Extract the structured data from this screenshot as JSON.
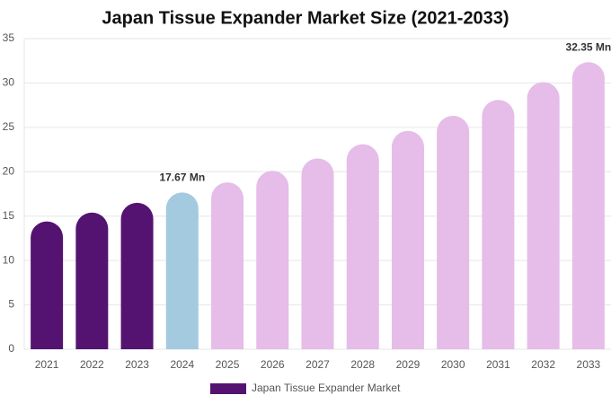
{
  "chart_data": {
    "type": "bar",
    "title": "Japan Tissue Expander Market Size (2021-2033)",
    "categories": [
      "2021",
      "2022",
      "2023",
      "2024",
      "2025",
      "2026",
      "2027",
      "2028",
      "2029",
      "2030",
      "2031",
      "2032",
      "2033"
    ],
    "series": [
      {
        "name": "Japan Tissue Expander Market",
        "color": "#541371",
        "values": [
          14.4,
          15.4,
          16.5,
          17.67,
          18.8,
          20.1,
          21.5,
          23.1,
          24.6,
          26.3,
          28.1,
          30.1,
          32.35
        ],
        "value_labels": [
          null,
          null,
          null,
          "17.67 Mn",
          null,
          null,
          null,
          null,
          null,
          null,
          null,
          null,
          "32.35 Mn"
        ],
        "colors": [
          "#541371",
          "#541371",
          "#541371",
          "#a3cadf",
          "#e6bce8",
          "#e6bce8",
          "#e6bce8",
          "#e6bce8",
          "#e6bce8",
          "#e6bce8",
          "#e6bce8",
          "#e6bce8",
          "#e6bce8"
        ]
      }
    ],
    "ylim": [
      0,
      35
    ],
    "yticks": [
      0,
      5,
      10,
      15,
      20,
      25,
      30,
      35
    ],
    "grid": true
  }
}
